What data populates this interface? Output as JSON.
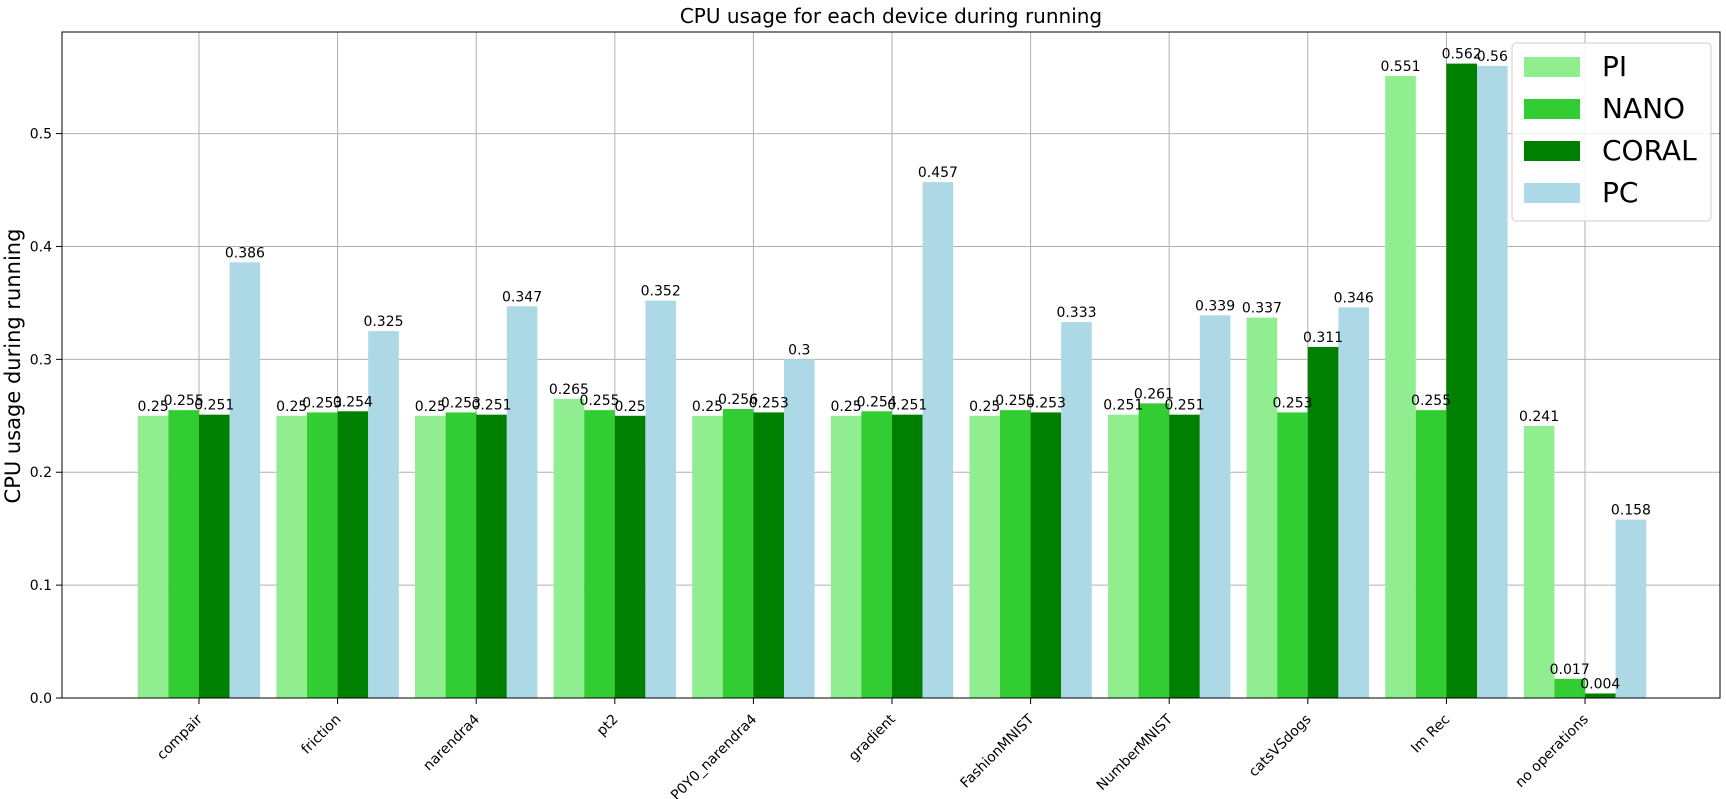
{
  "chart_data": {
    "type": "bar",
    "title": "CPU usage for each device during running",
    "xlabel": "",
    "ylabel": "CPU usage during running",
    "ylim": [
      0,
      0.59
    ],
    "yticks": [
      0.0,
      0.1,
      0.2,
      0.3,
      0.4,
      0.5
    ],
    "ytick_labels": [
      "0.0",
      "0.1",
      "0.2",
      "0.3",
      "0.4",
      "0.5"
    ],
    "grid": true,
    "legend_position": "top-right",
    "categories": [
      "compair",
      "friction",
      "narendra4",
      "pt2",
      "P0Y0_narendra4",
      "gradient",
      "FashionMNIST",
      "NumberMNIST",
      "catsVSdogs",
      "Im Rec",
      "no operations"
    ],
    "series": [
      {
        "name": "PI",
        "color": "#90ee90",
        "values": [
          0.25,
          0.25,
          0.25,
          0.265,
          0.25,
          0.25,
          0.25,
          0.251,
          0.337,
          0.551,
          0.241
        ],
        "labels": [
          "0.25",
          "0.25",
          "0.25",
          "0.265",
          "0.25",
          "0.25",
          "0.25",
          "0.251",
          "0.337",
          "0.551",
          "0.241"
        ]
      },
      {
        "name": "NANO",
        "color": "#32cd32",
        "values": [
          0.255,
          0.253,
          0.253,
          0.255,
          0.256,
          0.254,
          0.255,
          0.261,
          0.253,
          0.255,
          0.017
        ],
        "labels": [
          "0.255",
          "0.253",
          "0.253",
          "0.255",
          "0.256",
          "0.254",
          "0.255",
          "0.261",
          "0.253",
          "0.255",
          "0.017"
        ]
      },
      {
        "name": "CORAL",
        "color": "#008000",
        "values": [
          0.251,
          0.254,
          0.251,
          0.25,
          0.253,
          0.251,
          0.253,
          0.251,
          0.311,
          0.562,
          0.004
        ],
        "labels": [
          "0.251",
          "0.254",
          "0.251",
          "0.25",
          "0.253",
          "0.251",
          "0.253",
          "0.251",
          "0.311",
          "0.562",
          "0.004"
        ]
      },
      {
        "name": "PC",
        "color": "#add8e6",
        "values": [
          0.386,
          0.325,
          0.347,
          0.352,
          0.3,
          0.457,
          0.333,
          0.339,
          0.346,
          0.56,
          0.158
        ],
        "labels": [
          "0.386",
          "0.325",
          "0.347",
          "0.352",
          "0.3",
          "0.457",
          "0.333",
          "0.339",
          "0.346",
          "0.56",
          "0.158"
        ]
      }
    ]
  }
}
